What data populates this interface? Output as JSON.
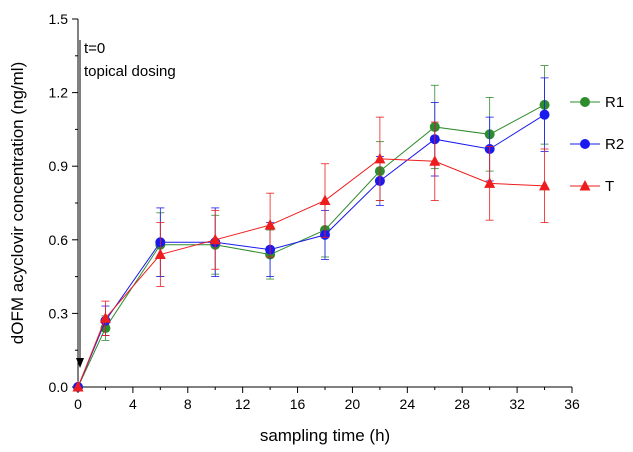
{
  "chart_data": {
    "type": "line",
    "xlabel": "sampling time (h)",
    "ylabel": "dOFM acyclovir concentration (ng/ml)",
    "xlim": [
      0,
      36
    ],
    "ylim": [
      0,
      1.5
    ],
    "xticks": [
      "0",
      "4",
      "8",
      "12",
      "16",
      "20",
      "24",
      "28",
      "32",
      "36"
    ],
    "xtick_values": [
      0,
      4,
      8,
      12,
      16,
      20,
      24,
      28,
      32,
      36
    ],
    "yticks": [
      "0.0",
      "0.3",
      "0.6",
      "0.9",
      "1.2",
      "1.5"
    ],
    "ytick_values": [
      0,
      0.3,
      0.6,
      0.9,
      1.2,
      1.5
    ],
    "grid": false,
    "legend_position": "right",
    "annotation": {
      "line1": "t=0",
      "line2": "topical dosing",
      "x": 0
    },
    "series": [
      {
        "name": "R1",
        "color": "#2e8b2e",
        "marker": "circle",
        "x": [
          0,
          2,
          6,
          10,
          14,
          18,
          22,
          26,
          30,
          34
        ],
        "y": [
          0.0,
          0.24,
          0.58,
          0.58,
          0.54,
          0.64,
          0.88,
          1.06,
          1.03,
          1.15
        ],
        "err": [
          0.0,
          0.05,
          0.13,
          0.12,
          0.1,
          0.11,
          0.12,
          0.17,
          0.15,
          0.16
        ]
      },
      {
        "name": "R2",
        "color": "#1a1aee",
        "marker": "circle",
        "x": [
          0,
          2,
          6,
          10,
          14,
          18,
          22,
          26,
          30,
          34
        ],
        "y": [
          0.0,
          0.27,
          0.59,
          0.59,
          0.56,
          0.62,
          0.84,
          1.01,
          0.97,
          1.11
        ],
        "err": [
          0.0,
          0.06,
          0.14,
          0.14,
          0.11,
          0.1,
          0.1,
          0.15,
          0.13,
          0.15
        ]
      },
      {
        "name": "T",
        "color": "#ee1c1c",
        "marker": "triangle",
        "x": [
          0,
          2,
          6,
          10,
          14,
          18,
          22,
          26,
          30,
          34
        ],
        "y": [
          0.0,
          0.28,
          0.54,
          0.6,
          0.66,
          0.76,
          0.93,
          0.92,
          0.83,
          0.82
        ],
        "err": [
          0.0,
          0.07,
          0.13,
          0.12,
          0.13,
          0.15,
          0.17,
          0.16,
          0.15,
          0.15
        ]
      }
    ]
  }
}
